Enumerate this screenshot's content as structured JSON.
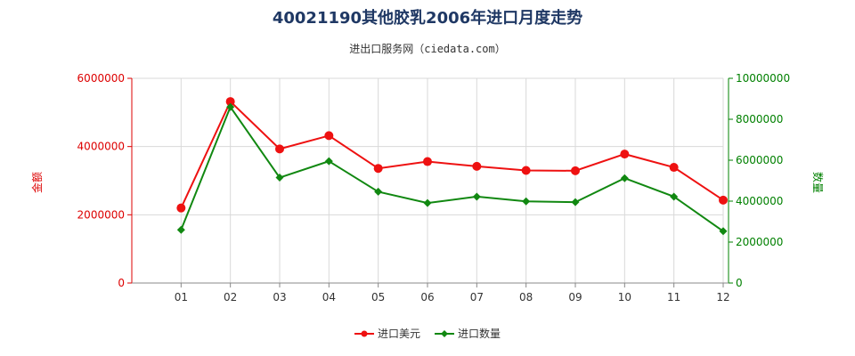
{
  "chart_data": {
    "type": "line",
    "title": "40021190其他胶乳2006年进口月度走势",
    "subtitle": "进出口服务网（ciedata.com）",
    "categories": [
      "01",
      "02",
      "03",
      "04",
      "05",
      "06",
      "07",
      "08",
      "09",
      "10",
      "11",
      "12"
    ],
    "y_left": {
      "label": "金额",
      "ylim": [
        0,
        6000000
      ],
      "ticks": [
        "0",
        "2000000",
        "4000000",
        "6000000"
      ],
      "color": "#dd0000"
    },
    "y_right": {
      "label": "数量",
      "ylim": [
        0,
        10000000
      ],
      "ticks": [
        "0",
        "2000000",
        "4000000",
        "6000000",
        "8000000",
        "10000000"
      ],
      "color": "#008000"
    },
    "series": [
      {
        "name": "进口美元",
        "axis": "left",
        "color": "#ee1111",
        "values": [
          2200000,
          5320000,
          3930000,
          4320000,
          3360000,
          3560000,
          3420000,
          3300000,
          3290000,
          3780000,
          3390000,
          2430000
        ]
      },
      {
        "name": "进口数量",
        "axis": "right",
        "color": "#118811",
        "values": [
          2600000,
          8600000,
          5150000,
          5950000,
          4460000,
          3910000,
          4220000,
          3990000,
          3950000,
          5120000,
          4220000,
          2530000
        ]
      }
    ],
    "grid": true,
    "legend_position": "bottom-center"
  }
}
